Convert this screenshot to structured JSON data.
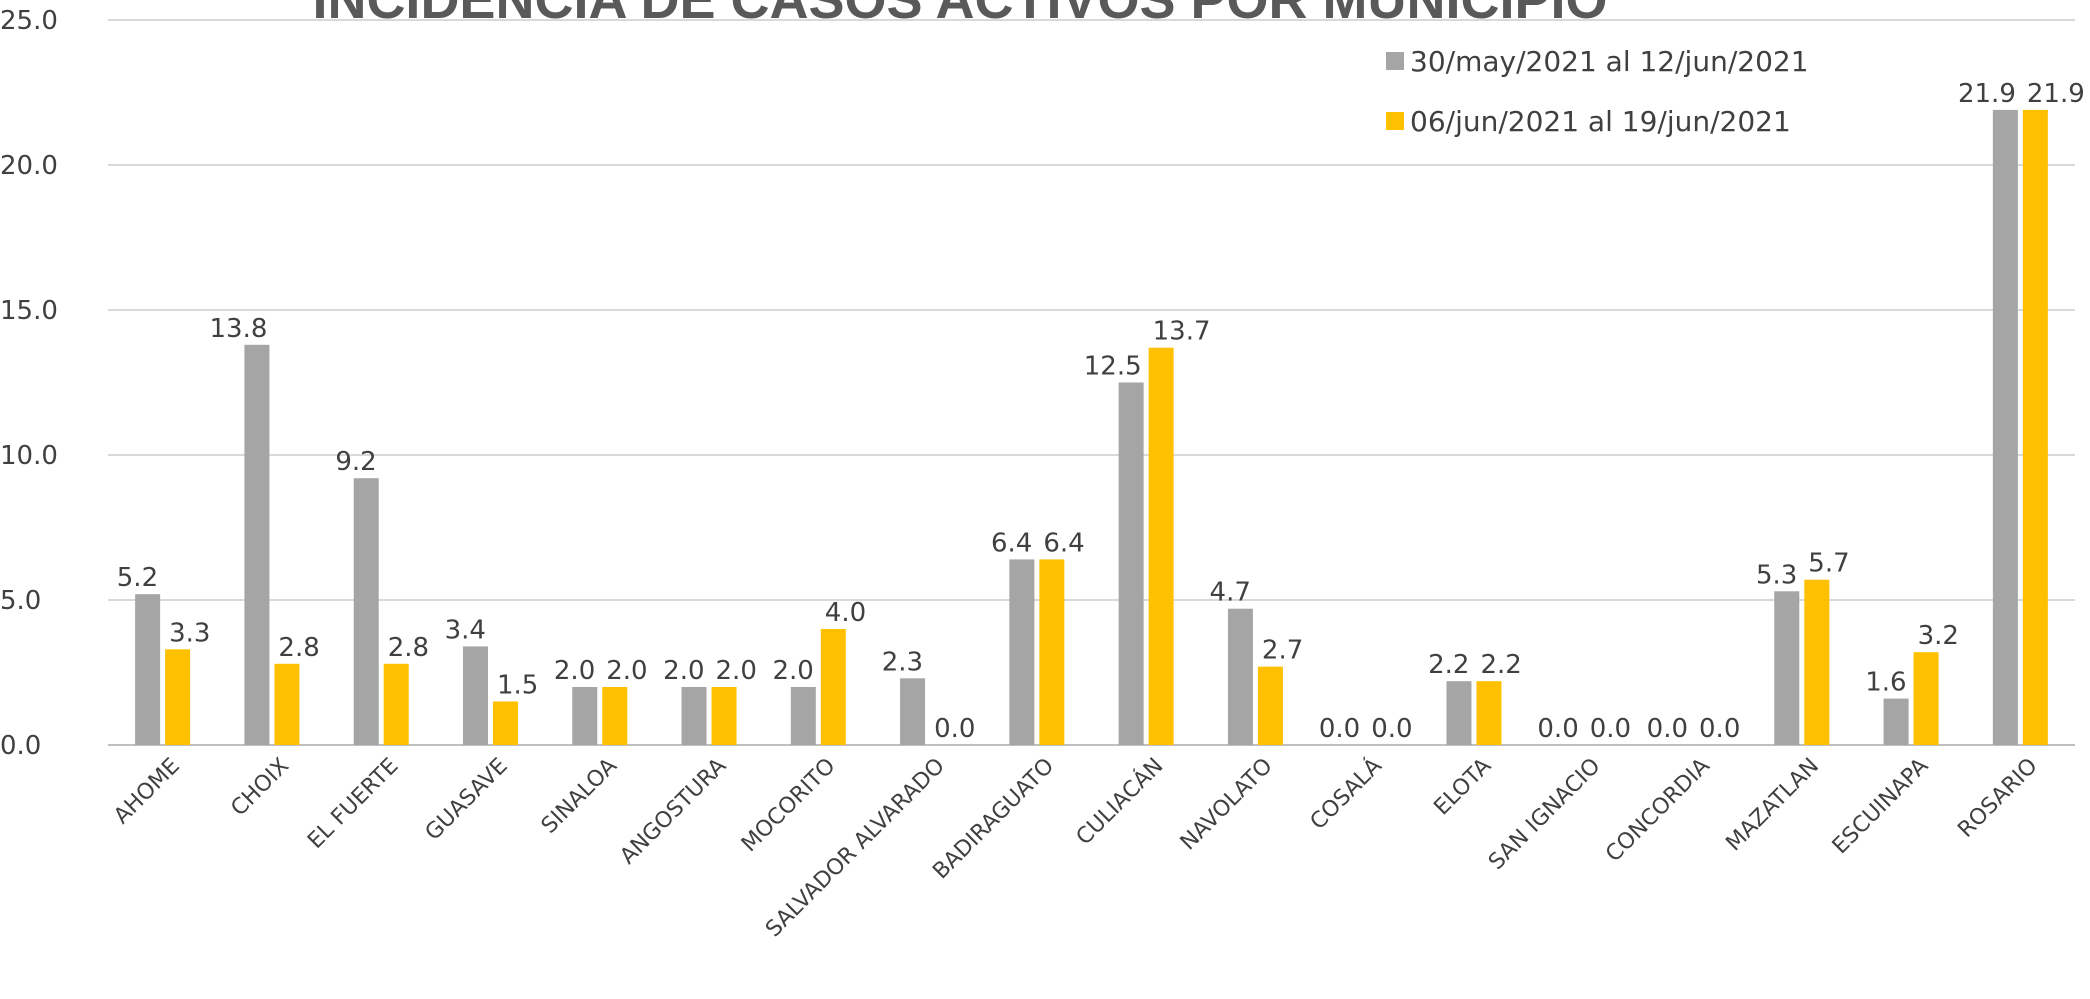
{
  "chart_data": {
    "type": "bar",
    "title": "INCIDENCIA DE CASOS ACTIVOS POR MUNICIPIO",
    "xlabel": "",
    "ylabel": "",
    "ylim": [
      0,
      25
    ],
    "yticks": [
      "0.0",
      "5.0",
      "10.0",
      "15.0",
      "20.0",
      "25.0"
    ],
    "grid": true,
    "legend_position": "top-right",
    "categories": [
      "AHOME",
      "CHOIX",
      "EL FUERTE",
      "GUASAVE",
      "SINALOA",
      "ANGOSTURA",
      "MOCORITO",
      "SALVADOR ALVARADO",
      "BADIRAGUATO",
      "CULIACÁN",
      "NAVOLATO",
      "COSALÁ",
      "ELOTA",
      "SAN IGNACIO",
      "CONCORDIA",
      "MAZATLAN",
      "ESCUINAPA",
      "ROSARIO"
    ],
    "series": [
      {
        "name": "30/may/2021 al  12/jun/2021",
        "color": "#a5a5a5",
        "values": [
          5.2,
          13.8,
          9.2,
          3.4,
          2.0,
          2.0,
          2.0,
          2.3,
          6.4,
          12.5,
          4.7,
          0.0,
          2.2,
          0.0,
          0.0,
          5.3,
          1.6,
          21.9
        ],
        "labels": [
          "5.2",
          "13.8",
          "9.2",
          "3.4",
          "2.0",
          "2.0",
          "2.0",
          "2.3",
          "6.4",
          "12.5",
          "4.7",
          "0.0",
          "2.2",
          "0.0",
          "0.0",
          "5.3",
          "1.6",
          "21.9"
        ]
      },
      {
        "name": "06/jun/2021 al  19/jun/2021",
        "color": "#ffc000",
        "values": [
          3.3,
          2.8,
          2.8,
          1.5,
          2.0,
          2.0,
          4.0,
          0.0,
          6.4,
          13.7,
          2.7,
          0.0,
          2.2,
          0.0,
          0.0,
          5.7,
          3.2,
          21.9
        ],
        "labels": [
          "3.3",
          "2.8",
          "2.8",
          "1.5",
          "2.0",
          "2.0",
          "4.0",
          "0.0",
          "6.4",
          "13.7",
          "2.7",
          "0.0",
          "2.2",
          "0.0",
          "0.0",
          "5.7",
          "3.2",
          "21.9"
        ]
      }
    ]
  }
}
